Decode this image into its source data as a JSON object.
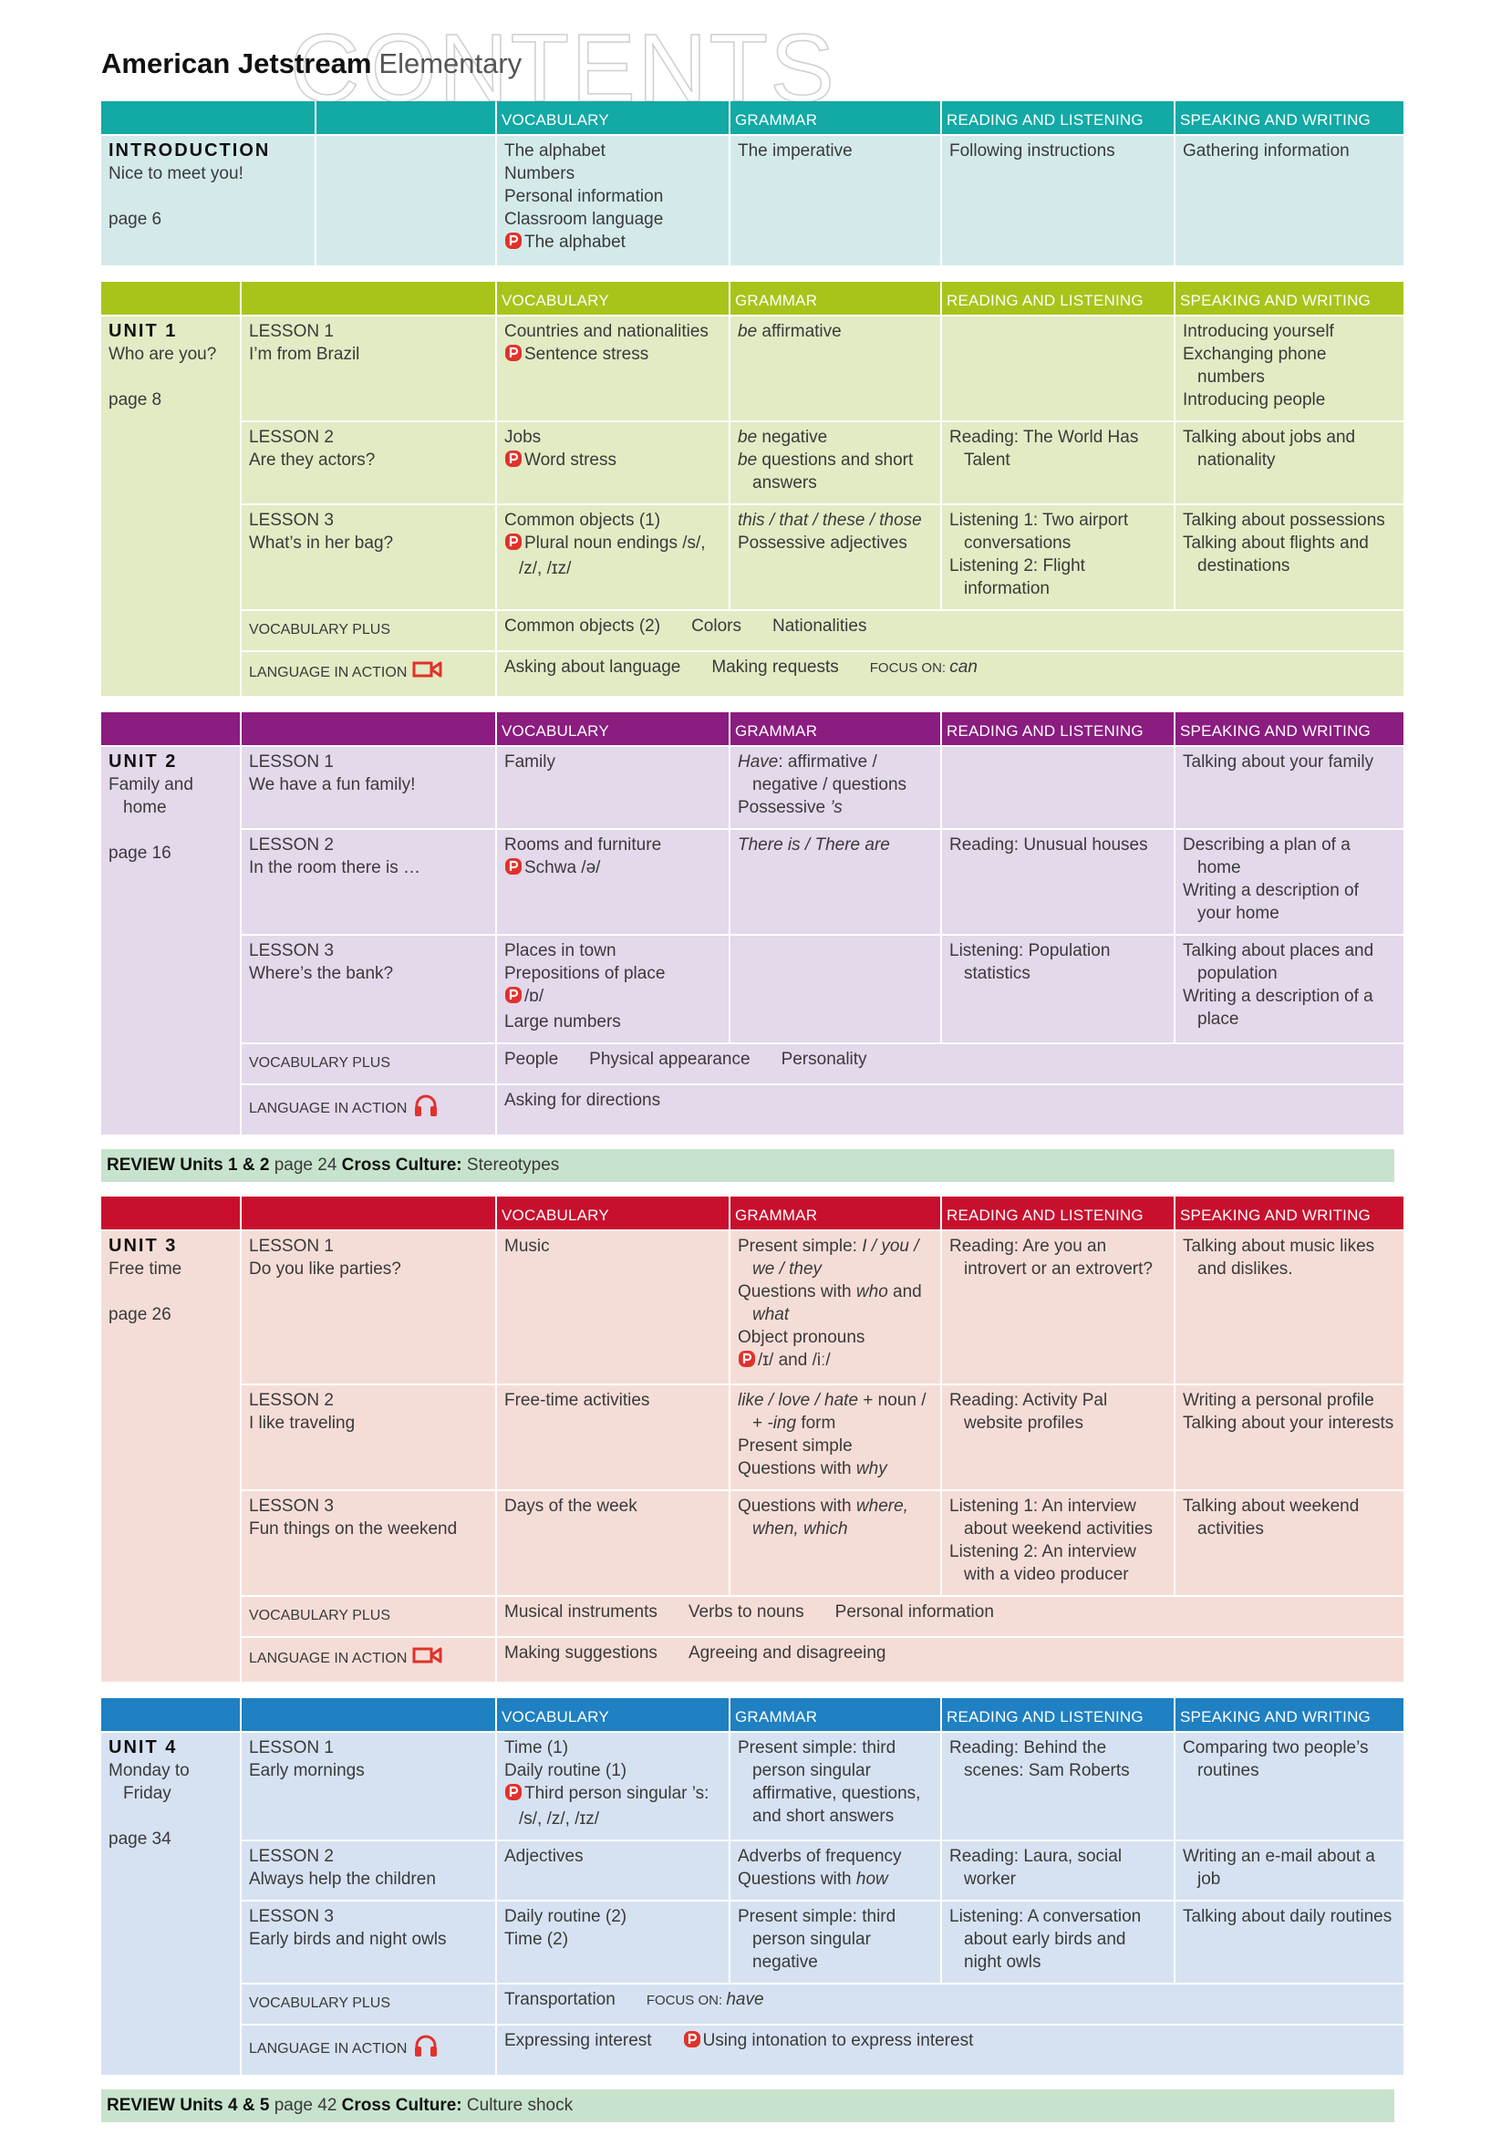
{
  "header": {
    "brand": "American Jetstream",
    "level": "Elementary",
    "watermark": "CONTENTS"
  },
  "column_headers": [
    "VOCABULARY",
    "GRAMMAR",
    "READING AND LISTENING",
    "SPEAKING AND WRITING"
  ],
  "row_labels": {
    "vocabulary_plus": "VOCABULARY PLUS",
    "language_in_action": "LANGUAGE IN ACTION"
  },
  "blocks": [
    {
      "kind": "intro",
      "color": "#13a9a5",
      "tint": "#d4eaea",
      "title": "INTRODUCTION",
      "name": "Nice to meet you!",
      "page": "page 6",
      "cells": [
        [
          "The alphabet",
          "Numbers",
          "Personal information",
          "Classroom language",
          {
            "pron": true,
            "parts": [
              "The alphabet"
            ]
          }
        ],
        [
          "The imperative"
        ],
        [
          "Following instructions"
        ],
        [
          "Gathering information"
        ]
      ]
    },
    {
      "kind": "unit",
      "color": "#a8c41b",
      "tint": "#e2ebc4",
      "title": "UNIT 1",
      "name": "Who are you?",
      "page": "page 8",
      "lessons": [
        {
          "lesson": "LESSON 1",
          "title": "I’m from Brazil",
          "cells": [
            [
              "Countries and nationalities",
              {
                "pron": true,
                "parts": [
                  "Sentence stress"
                ]
              }
            ],
            [
              {
                "parts": [
                  {
                    "italic": "be"
                  },
                  " affirmative"
                ]
              }
            ],
            [],
            [
              "Introducing yourself",
              "Exchanging phone numbers",
              "Introducing people"
            ]
          ]
        },
        {
          "lesson": "LESSON 2",
          "title": "Are they actors?",
          "cells": [
            [
              "Jobs",
              {
                "pron": true,
                "parts": [
                  "Word stress"
                ]
              }
            ],
            [
              {
                "parts": [
                  {
                    "italic": "be"
                  },
                  " negative"
                ]
              },
              {
                "parts": [
                  {
                    "italic": "be"
                  },
                  " questions and short answers"
                ]
              }
            ],
            [
              "Reading: The World Has Talent"
            ],
            [
              "Talking about jobs and nationality"
            ]
          ]
        },
        {
          "lesson": "LESSON 3",
          "title": "What’s in her bag?",
          "cells": [
            [
              "Common objects (1)",
              {
                "pron": true,
                "parts": [
                  "Plural noun endings /s/, /z/, /ɪz/"
                ]
              }
            ],
            [
              {
                "parts": [
                  {
                    "italic": "this / that / these / those"
                  }
                ]
              },
              "Possessive adjectives"
            ],
            [
              "Listening 1: Two airport conversations",
              "Listening 2: Flight information"
            ],
            [
              "Talking about possessions",
              "Talking about flights and destinations"
            ]
          ]
        }
      ],
      "vocabulary_plus": [
        "Common objects (2)",
        "Colors",
        "Nationalities"
      ],
      "language_in_action": [
        "Asking about language",
        "Making requests",
        {
          "parts": [
            {
              "small": "FOCUS ON: "
            },
            {
              "italic": "can"
            }
          ]
        }
      ],
      "language_in_action_icon": "video"
    },
    {
      "kind": "unit",
      "color": "#8b1c80",
      "tint": "#e4d8eb",
      "title": "UNIT 2",
      "name": "Family and home",
      "page": "page 16",
      "lessons": [
        {
          "lesson": "LESSON 1",
          "title": "We have a fun family!",
          "cells": [
            [
              "Family"
            ],
            [
              {
                "parts": [
                  {
                    "italic": "Have"
                  },
                  ": affirmative / negative / questions"
                ]
              },
              {
                "parts": [
                  "Possessive ",
                  {
                    "italic": "’s"
                  }
                ]
              }
            ],
            [],
            [
              "Talking about your family"
            ]
          ]
        },
        {
          "lesson": "LESSON 2",
          "title": "In the room there is …",
          "cells": [
            [
              "Rooms and furniture",
              {
                "pron": true,
                "parts": [
                  "Schwa /ə/"
                ]
              }
            ],
            [
              {
                "parts": [
                  {
                    "italic": "There is / There are"
                  }
                ]
              }
            ],
            [
              "Reading: Unusual houses"
            ],
            [
              "Describing a plan of a home",
              "Writing a description of your home"
            ]
          ]
        },
        {
          "lesson": "LESSON 3",
          "title": "Where’s the bank?",
          "cells": [
            [
              "Places in town",
              "Prepositions of place",
              {
                "pron": true,
                "parts": [
                  "/ɒ/"
                ]
              },
              "Large numbers"
            ],
            [],
            [
              "Listening: Population statistics"
            ],
            [
              "Talking about places and population",
              "Writing a description of a place"
            ]
          ]
        }
      ],
      "vocabulary_plus": [
        "People",
        "Physical appearance",
        "Personality"
      ],
      "language_in_action": [
        "Asking for directions"
      ],
      "language_in_action_icon": "audio"
    },
    {
      "kind": "review",
      "color": "#c8e3cd",
      "parts": [
        {
          "bold": "REVIEW Units 1 & 2"
        },
        " page 24 ",
        {
          "bold": "Cross Culture:"
        },
        " Stereotypes"
      ]
    },
    {
      "kind": "unit",
      "color": "#c8102e",
      "tint": "#f5ddd7",
      "title": "UNIT 3",
      "name": "Free time",
      "page": "page 26",
      "lessons": [
        {
          "lesson": "LESSON 1",
          "title": "Do you like parties?",
          "cells": [
            [
              "Music"
            ],
            [
              {
                "parts": [
                  "Present simple: ",
                  {
                    "italic": "I / you / we / they"
                  }
                ]
              },
              {
                "parts": [
                  "Questions with ",
                  {
                    "italic": "who"
                  },
                  " and ",
                  {
                    "italic": "what"
                  }
                ]
              },
              "Object pronouns",
              {
                "pron": true,
                "parts": [
                  "/ɪ/ and /iː/"
                ]
              }
            ],
            [
              "Reading: Are you an introvert or an extrovert?"
            ],
            [
              "Talking about music likes and dislikes."
            ]
          ]
        },
        {
          "lesson": "LESSON 2",
          "title": "I like traveling",
          "cells": [
            [
              "Free-time activities"
            ],
            [
              {
                "parts": [
                  {
                    "italic": "like / love / hate"
                  },
                  " + noun / + ",
                  {
                    "italic": "-ing"
                  },
                  " form"
                ]
              },
              "Present simple",
              {
                "parts": [
                  "Questions with ",
                  {
                    "italic": "why"
                  }
                ]
              }
            ],
            [
              "Reading: Activity Pal website profiles"
            ],
            [
              "Writing a personal profile",
              "Talking about your interests"
            ]
          ]
        },
        {
          "lesson": "LESSON 3",
          "title": "Fun things on the weekend",
          "cells": [
            [
              "Days of the week"
            ],
            [
              {
                "parts": [
                  "Questions with ",
                  {
                    "italic": "where, when, which"
                  }
                ]
              }
            ],
            [
              "Listening 1: An interview about weekend activities",
              "Listening 2: An interview with a video producer"
            ],
            [
              "Talking about weekend activities"
            ]
          ]
        }
      ],
      "vocabulary_plus": [
        "Musical instruments",
        "Verbs to nouns",
        "Personal information"
      ],
      "language_in_action": [
        "Making suggestions",
        "Agreeing and disagreeing"
      ],
      "language_in_action_icon": "video"
    },
    {
      "kind": "unit",
      "color": "#1f80c2",
      "tint": "#d6e2f1",
      "title": "UNIT 4",
      "name": "Monday to Friday",
      "page": "page 34",
      "lessons": [
        {
          "lesson": "LESSON 1",
          "title": "Early mornings",
          "cells": [
            [
              "Time (1)",
              "Daily routine (1)",
              {
                "pron": true,
                "parts": [
                  "Third person singular ’s: /s/, /z/, /ɪz/"
                ]
              }
            ],
            [
              "Present simple: third person singular affirmative, questions, and short answers"
            ],
            [
              "Reading: Behind the scenes: Sam Roberts"
            ],
            [
              "Comparing two people’s routines"
            ]
          ]
        },
        {
          "lesson": "LESSON 2",
          "title": "Always help the children",
          "cells": [
            [
              "Adjectives"
            ],
            [
              "Adverbs of frequency",
              {
                "parts": [
                  "Questions with ",
                  {
                    "italic": "how"
                  }
                ]
              }
            ],
            [
              "Reading: Laura, social worker"
            ],
            [
              "Writing an e-mail about a job"
            ]
          ]
        },
        {
          "lesson": "LESSON 3",
          "title": "Early birds and night owls",
          "cells": [
            [
              "Daily routine (2)",
              "Time (2)"
            ],
            [
              "Present simple: third person singular negative"
            ],
            [
              "Listening: A conversation about early birds and night owls"
            ],
            [
              "Talking about daily routines"
            ]
          ]
        }
      ],
      "vocabulary_plus": [
        "Transportation",
        {
          "parts": [
            {
              "small": "FOCUS ON: "
            },
            {
              "italic": "have"
            }
          ]
        }
      ],
      "language_in_action": [
        "Expressing interest",
        {
          "pron": true,
          "parts": [
            "Using intonation to express interest"
          ]
        }
      ],
      "language_in_action_icon": "audio"
    },
    {
      "kind": "review",
      "color": "#c8e3cd",
      "parts": [
        {
          "bold": "REVIEW Units 4 & 5"
        },
        " page 42 ",
        {
          "bold": "Cross Culture:"
        },
        " Culture shock"
      ]
    }
  ]
}
